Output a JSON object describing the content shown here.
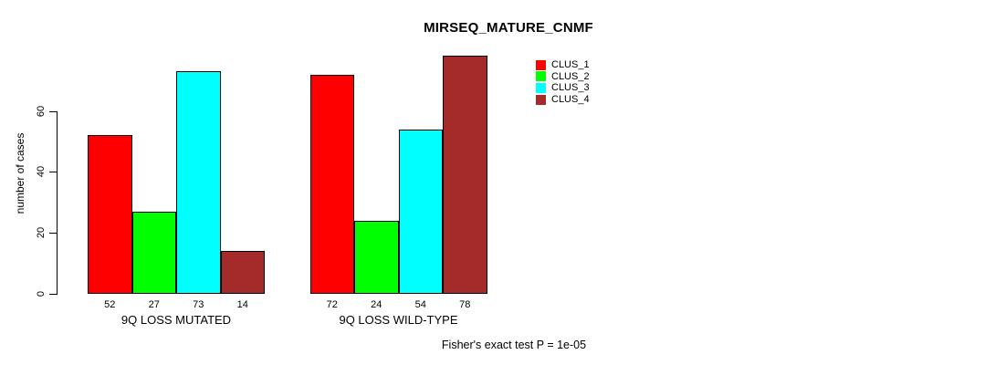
{
  "chart_data": {
    "type": "bar",
    "title": "MIRSEQ_MATURE_CNMF",
    "ylabel": "number of cases",
    "xlabel": "",
    "ylim": [
      0,
      78
    ],
    "yticks": [
      0,
      20,
      40,
      60
    ],
    "grid": false,
    "legend_position": "top-right",
    "categories": [
      "9Q LOSS MUTATED",
      "9Q LOSS WILD-TYPE"
    ],
    "series": [
      {
        "name": "CLUS_1",
        "color": "#FF0000",
        "values": [
          52,
          72
        ]
      },
      {
        "name": "CLUS_2",
        "color": "#00FF00",
        "values": [
          27,
          24
        ]
      },
      {
        "name": "CLUS_3",
        "color": "#00FFFF",
        "values": [
          73,
          54
        ]
      },
      {
        "name": "CLUS_4",
        "color": "#A52A2A",
        "values": [
          14,
          78
        ]
      }
    ],
    "bar_value_labels": [
      [
        52,
        27,
        73,
        14
      ],
      [
        72,
        24,
        54,
        78
      ]
    ],
    "annotation": "Fisher's exact test P = 1e-05"
  }
}
